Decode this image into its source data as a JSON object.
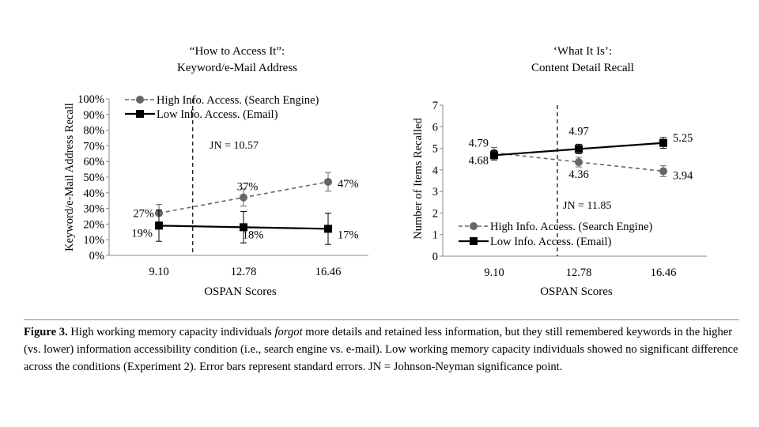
{
  "chart_data": [
    {
      "type": "line",
      "title_line1": "“How to Access It”:",
      "title_line2": "Keyword/e-Mail Address",
      "xlabel": "OSPAN Scores",
      "ylabel": "Keyword/e-Mail Address Recall",
      "x": [
        "9.10",
        "12.78",
        "16.46"
      ],
      "ylim": [
        0,
        100
      ],
      "y_ticks": [
        "0%",
        "10%",
        "20%",
        "30%",
        "40%",
        "50%",
        "60%",
        "70%",
        "80%",
        "90%",
        "100%"
      ],
      "jn_label": "JN = 10.57",
      "jn_x": 10.57,
      "legend_position": "top-left",
      "series": [
        {
          "name": "High Info. Access. (Search Engine)",
          "values": [
            27,
            37,
            47
          ],
          "errors": [
            5.5,
            5.5,
            6
          ],
          "labels": [
            "27%",
            "37%",
            "47%"
          ],
          "style": "dashed",
          "marker": "circle",
          "color": "#666666"
        },
        {
          "name": "Low Info. Access. (Email)",
          "values": [
            19,
            18,
            17
          ],
          "errors": [
            10,
            10,
            10
          ],
          "labels": [
            "19%",
            "18%",
            "17%"
          ],
          "style": "solid",
          "marker": "square",
          "color": "#000000"
        }
      ]
    },
    {
      "type": "line",
      "title_line1": "‘What It Is’:",
      "title_line2": "Content Detail Recall",
      "xlabel": "OSPAN Scores",
      "ylabel": "Number of Items Recalled",
      "x": [
        "9.10",
        "12.78",
        "16.46"
      ],
      "ylim": [
        0,
        7
      ],
      "y_ticks": [
        "0",
        "1",
        "2",
        "3",
        "4",
        "5",
        "6",
        "7"
      ],
      "jn_label": "JN = 11.85",
      "jn_x": 11.85,
      "legend_position": "bottom-left",
      "series": [
        {
          "name": "High Info. Access. (Search Engine)",
          "values": [
            4.79,
            4.36,
            3.94
          ],
          "errors": [
            0.25,
            0.22,
            0.25
          ],
          "labels": [
            "4.79",
            "4.36",
            "3.94"
          ],
          "style": "dashed",
          "marker": "circle",
          "color": "#666666"
        },
        {
          "name": "Low Info. Access. (Email)",
          "values": [
            4.68,
            4.97,
            5.25
          ],
          "errors": [
            0.22,
            0.22,
            0.25
          ],
          "labels": [
            "4.68",
            "4.97",
            "5.25"
          ],
          "style": "solid",
          "marker": "square",
          "color": "#000000"
        }
      ]
    }
  ],
  "caption": {
    "label": "Figure 3.",
    "text1": " High working memory capacity individuals ",
    "emph": "forgot",
    "text2": " more details and retained less information, but they still remembered keywords in the higher (vs. lower) information accessibility condition (i.e., search engine vs. e-mail). Low working memory capacity individuals showed no significant difference across the conditions (Experiment 2). Error bars represent standard errors. JN = Johnson-Neyman significance point."
  }
}
